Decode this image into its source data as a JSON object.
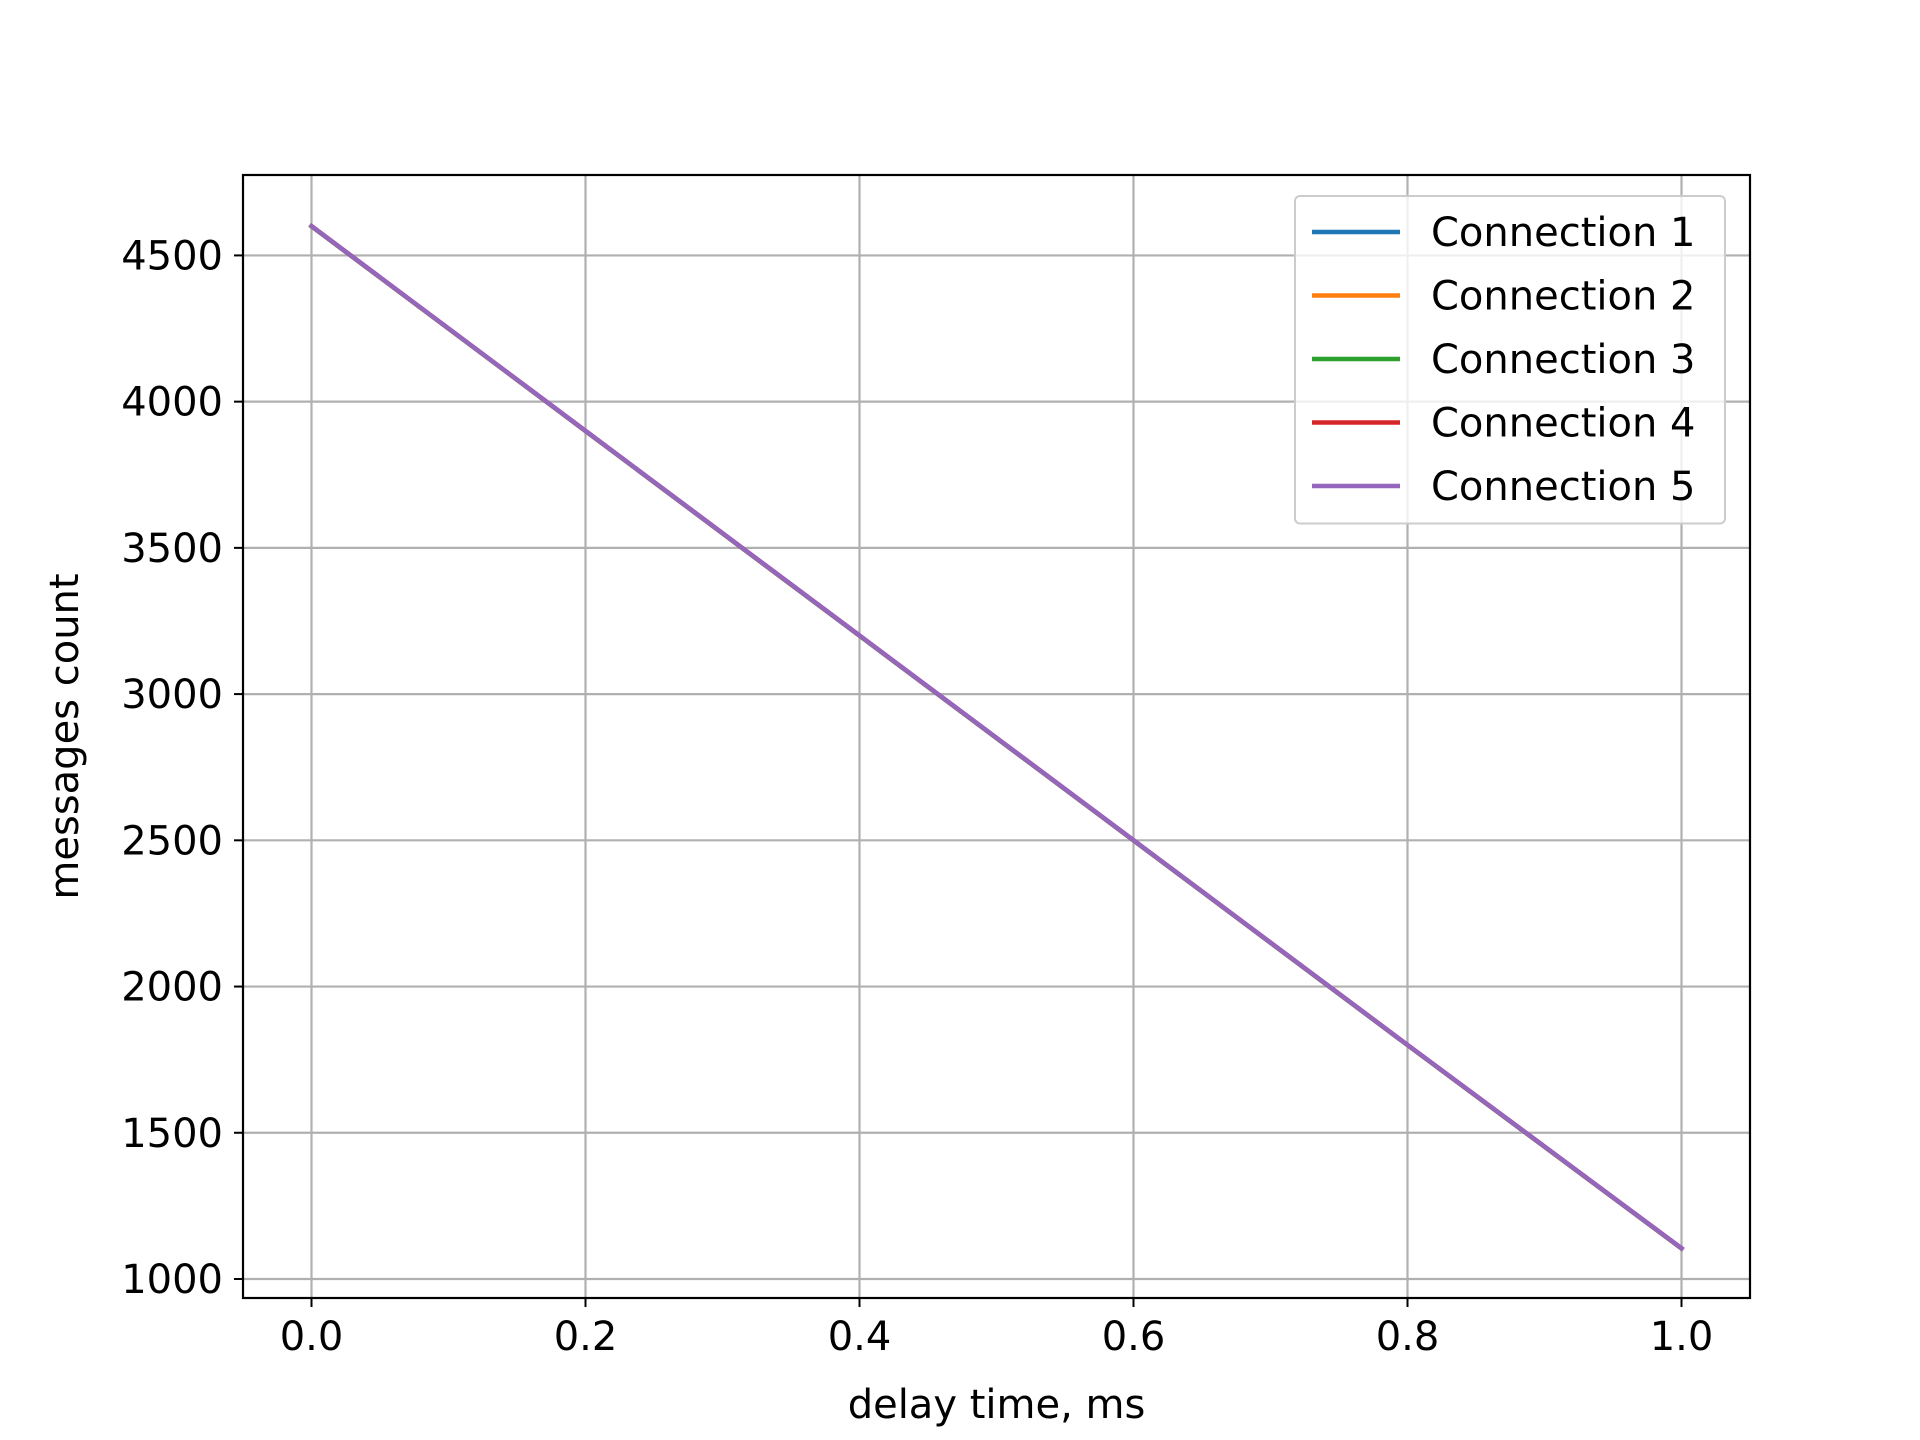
{
  "chart_data": {
    "type": "line",
    "title": "",
    "xlabel": "delay time, ms",
    "ylabel": "messages count",
    "xlim": [
      -0.05,
      1.05
    ],
    "ylim": [
      935,
      4775
    ],
    "xticks": [
      0.0,
      0.2,
      0.4,
      0.6,
      0.8,
      1.0
    ],
    "xtick_labels": [
      "0.0",
      "0.2",
      "0.4",
      "0.6",
      "0.8",
      "1.0"
    ],
    "yticks": [
      1000,
      1500,
      2000,
      2500,
      3000,
      3500,
      4000,
      4500
    ],
    "ytick_labels": [
      "1000",
      "1500",
      "2000",
      "2500",
      "3000",
      "3500",
      "4000",
      "4500"
    ],
    "grid": true,
    "legend_position": "top-right",
    "x": [
      0.0,
      0.2,
      0.4,
      0.6,
      0.8,
      1.0
    ],
    "series": [
      {
        "name": "Connection 1",
        "color": "#1f77b4",
        "values": [
          4600,
          3900,
          3200,
          2500,
          1800,
          1105
        ]
      },
      {
        "name": "Connection 2",
        "color": "#ff7f0e",
        "values": [
          4600,
          3900,
          3200,
          2500,
          1800,
          1105
        ]
      },
      {
        "name": "Connection 3",
        "color": "#2ca02c",
        "values": [
          4600,
          3900,
          3200,
          2500,
          1800,
          1105
        ]
      },
      {
        "name": "Connection 4",
        "color": "#d62728",
        "values": [
          4600,
          3900,
          3200,
          2500,
          1800,
          1105
        ]
      },
      {
        "name": "Connection 5",
        "color": "#9467bd",
        "values": [
          4600,
          3900,
          3200,
          2500,
          1800,
          1105
        ]
      }
    ]
  }
}
